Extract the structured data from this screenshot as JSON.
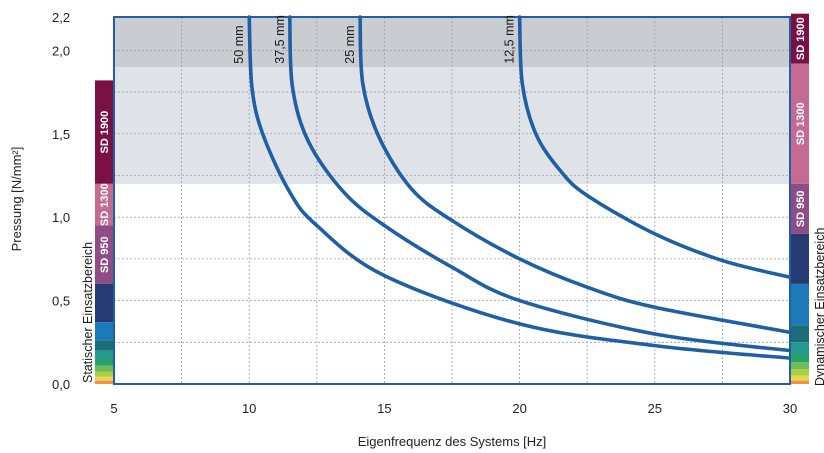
{
  "chart_data": {
    "type": "line",
    "title": "",
    "xlabel": "Eigenfrequenz des Systems [Hz]",
    "ylabel": "Pressung [N/mm²]",
    "xlim": [
      5,
      30
    ],
    "ylim": [
      0,
      2.2
    ],
    "x_ticks": [
      5,
      10,
      15,
      20,
      25,
      30
    ],
    "x_tick_labels": [
      "5",
      "10",
      "15",
      "20",
      "25",
      "30"
    ],
    "y_ticks": [
      0,
      0.5,
      1.0,
      1.5,
      2.0,
      2.2
    ],
    "y_tick_labels": [
      "0,0",
      "0,5",
      "1,0",
      "1,5",
      "2,0",
      "2,2"
    ],
    "grid": true,
    "series": [
      {
        "name": "50 mm",
        "color": "#1f5fa3",
        "points": [
          [
            10,
            2.2
          ],
          [
            10.1,
            1.78
          ],
          [
            10.5,
            1.5
          ],
          [
            11.5,
            1.15
          ],
          [
            12.5,
            0.95
          ],
          [
            15,
            0.65
          ],
          [
            20,
            0.36
          ],
          [
            25,
            0.23
          ],
          [
            30,
            0.155
          ]
        ]
      },
      {
        "name": "37,5 mm",
        "color": "#1f5fa3",
        "points": [
          [
            11.5,
            2.2
          ],
          [
            11.6,
            1.78
          ],
          [
            12.2,
            1.45
          ],
          [
            13.5,
            1.15
          ],
          [
            15,
            0.95
          ],
          [
            17.5,
            0.7
          ],
          [
            20,
            0.5
          ],
          [
            25,
            0.3
          ],
          [
            30,
            0.2
          ]
        ]
      },
      {
        "name": "25 mm",
        "color": "#1f5fa3",
        "points": [
          [
            14.1,
            2.2
          ],
          [
            14.2,
            1.8
          ],
          [
            14.8,
            1.48
          ],
          [
            16,
            1.17
          ],
          [
            17.5,
            0.98
          ],
          [
            20,
            0.75
          ],
          [
            22.5,
            0.58
          ],
          [
            25,
            0.46
          ],
          [
            30,
            0.31
          ]
        ]
      },
      {
        "name": "12,5 mm",
        "color": "#1f5fa3",
        "points": [
          [
            20,
            2.2
          ],
          [
            20.1,
            1.8
          ],
          [
            20.6,
            1.5
          ],
          [
            21.5,
            1.28
          ],
          [
            22.5,
            1.13
          ],
          [
            25,
            0.9
          ],
          [
            27.5,
            0.74
          ],
          [
            30,
            0.64
          ]
        ]
      }
    ],
    "shaded_regions": [
      {
        "y_from": 1.9,
        "y_to": 2.2,
        "color": "#c9ccd1"
      },
      {
        "y_from": 1.2,
        "y_to": 1.9,
        "color": "#dfe2e6"
      }
    ],
    "left_scale": {
      "title": "Statischer Einsatzbereich",
      "bands": [
        {
          "label": "SD 1900",
          "y_from": 1.2,
          "y_to": 1.82,
          "color": "#7a1044"
        },
        {
          "label": "SD 1300",
          "y_from": 0.95,
          "y_to": 1.2,
          "color": "#c46a93"
        },
        {
          "label": "SD 950",
          "y_from": 0.6,
          "y_to": 0.95,
          "color": "#8f4d87"
        },
        {
          "label": "",
          "y_from": 0.37,
          "y_to": 0.6,
          "color": "#263a73"
        },
        {
          "label": "",
          "y_from": 0.26,
          "y_to": 0.37,
          "color": "#1c7ab8"
        },
        {
          "label": "",
          "y_from": 0.2,
          "y_to": 0.26,
          "color": "#1b6d77"
        },
        {
          "label": "",
          "y_from": 0.15,
          "y_to": 0.2,
          "color": "#249a8f"
        },
        {
          "label": "",
          "y_from": 0.11,
          "y_to": 0.15,
          "color": "#27a16a"
        },
        {
          "label": "",
          "y_from": 0.075,
          "y_to": 0.11,
          "color": "#6bbb57"
        },
        {
          "label": "",
          "y_from": 0.045,
          "y_to": 0.075,
          "color": "#a9cf4c"
        },
        {
          "label": "",
          "y_from": 0.02,
          "y_to": 0.045,
          "color": "#e6d84a"
        },
        {
          "label": "",
          "y_from": 0.0,
          "y_to": 0.02,
          "color": "#ee8f4a"
        }
      ]
    },
    "right_scale": {
      "title": "Dynamischer Einsatzbereich",
      "bands": [
        {
          "label": "SD 1900",
          "y_from": 1.92,
          "y_to": 2.22,
          "color": "#7a1044"
        },
        {
          "label": "SD 1300",
          "y_from": 1.2,
          "y_to": 1.92,
          "color": "#c46a93"
        },
        {
          "label": "SD 950",
          "y_from": 0.9,
          "y_to": 1.2,
          "color": "#8f4d87"
        },
        {
          "label": "",
          "y_from": 0.6,
          "y_to": 0.9,
          "color": "#263a73"
        },
        {
          "label": "",
          "y_from": 0.35,
          "y_to": 0.6,
          "color": "#1c7ab8"
        },
        {
          "label": "",
          "y_from": 0.25,
          "y_to": 0.35,
          "color": "#1b6d77"
        },
        {
          "label": "",
          "y_from": 0.18,
          "y_to": 0.25,
          "color": "#249a8f"
        },
        {
          "label": "",
          "y_from": 0.13,
          "y_to": 0.18,
          "color": "#27a16a"
        },
        {
          "label": "",
          "y_from": 0.09,
          "y_to": 0.13,
          "color": "#6bbb57"
        },
        {
          "label": "",
          "y_from": 0.05,
          "y_to": 0.09,
          "color": "#a9cf4c"
        },
        {
          "label": "",
          "y_from": 0.02,
          "y_to": 0.05,
          "color": "#e6d84a"
        },
        {
          "label": "",
          "y_from": 0.0,
          "y_to": 0.02,
          "color": "#ee8f4a"
        }
      ]
    }
  }
}
